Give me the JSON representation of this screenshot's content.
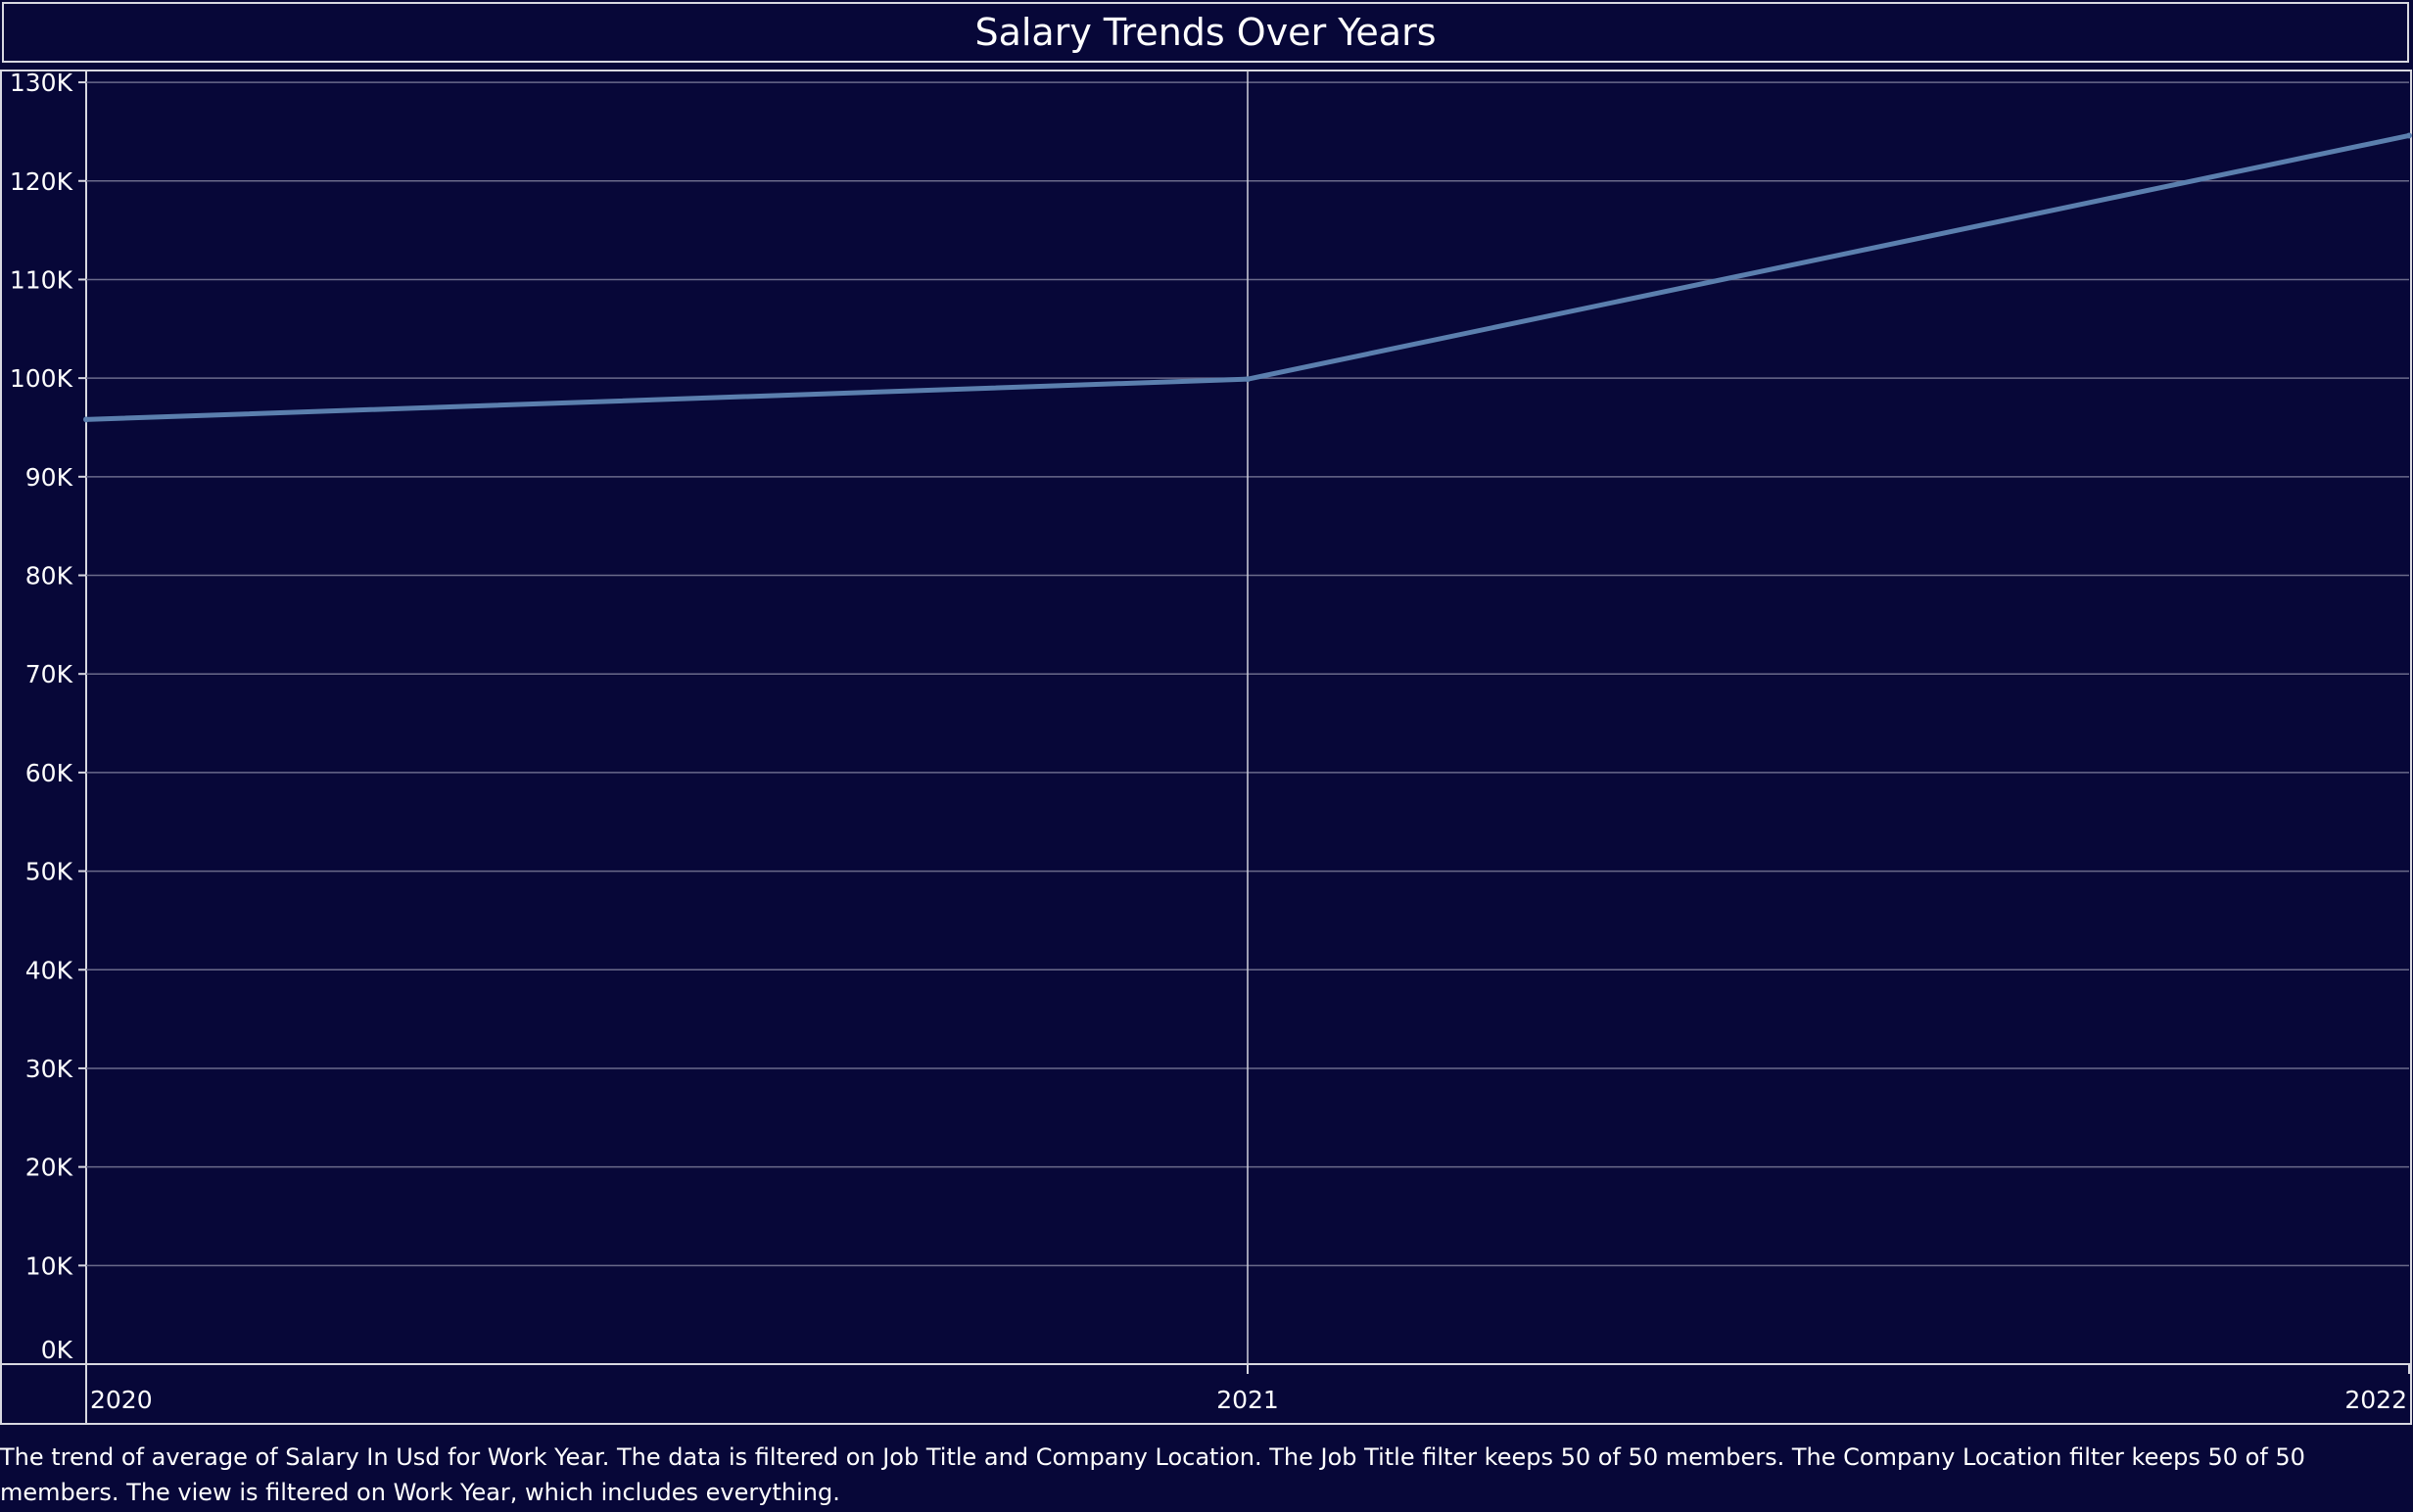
{
  "chart_data": {
    "type": "line",
    "title": "Salary Trends Over Years",
    "xlabel": "",
    "ylabel": "",
    "x": [
      "2020",
      "2021",
      "2022"
    ],
    "series": [
      {
        "values": [
          95800,
          99900,
          124600
        ],
        "color": "#5b7fae"
      }
    ],
    "y_ticks": [
      0,
      10000,
      20000,
      30000,
      40000,
      50000,
      60000,
      70000,
      80000,
      90000,
      100000,
      110000,
      120000,
      130000
    ],
    "y_tick_labels": [
      "0K",
      "10K",
      "20K",
      "30K",
      "40K",
      "50K",
      "60K",
      "70K",
      "80K",
      "90K",
      "100K",
      "110K",
      "120K",
      "130K"
    ],
    "ylim": [
      0,
      131000
    ],
    "grid": true,
    "legend": "none"
  },
  "caption": "The trend of average of Salary In Usd for Work Year. The data is filtered on Job Title and Company Location. The Job Title filter keeps 50 of 50 members. The Company Location filter keeps 50 of 50 members. The view is filtered on Work Year, which includes everything.",
  "colors": {
    "background": "#070738",
    "gridline": "#6a6a8a",
    "axis": "#d8d8e0",
    "line": "#5b7fae"
  }
}
